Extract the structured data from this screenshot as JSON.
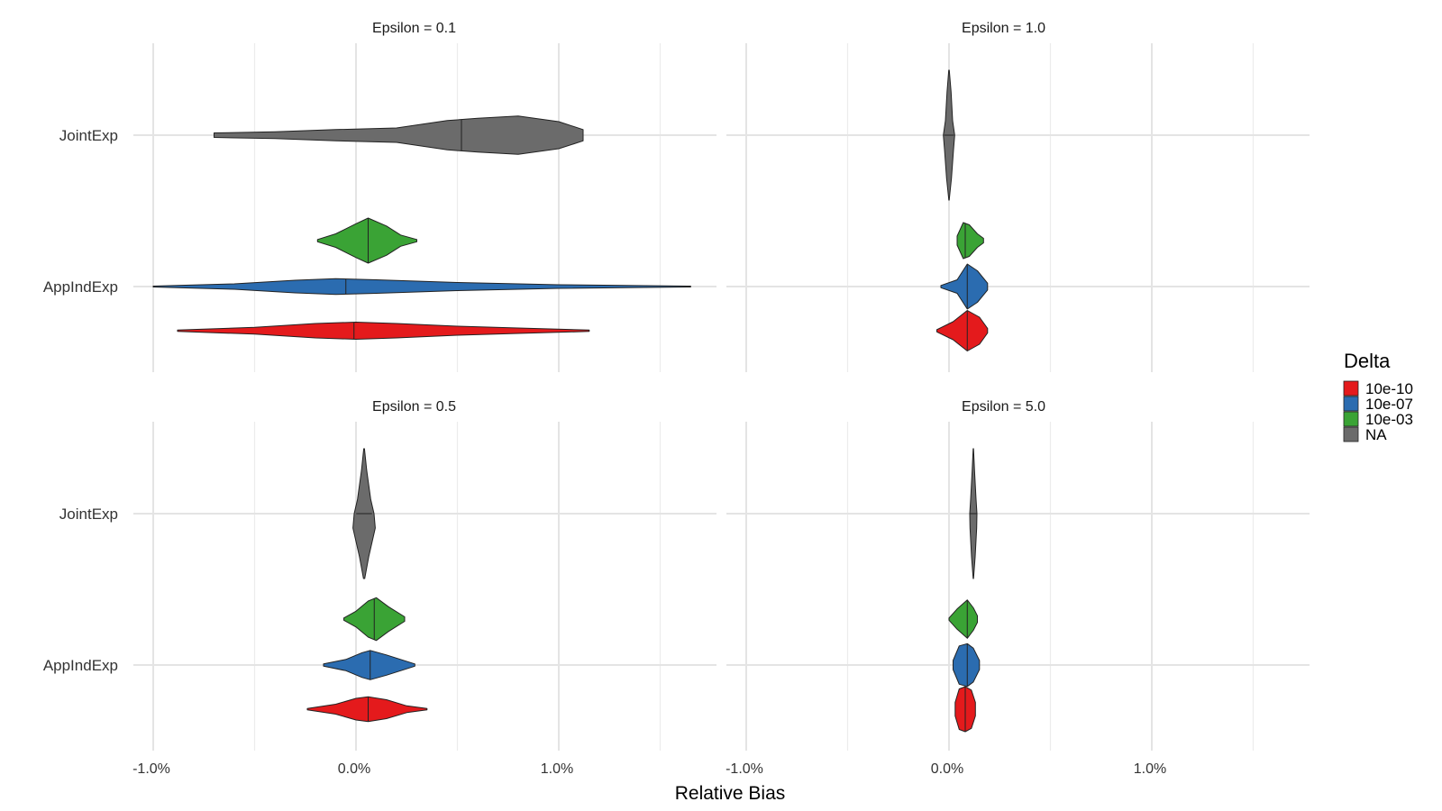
{
  "chart_data": {
    "type": "violin",
    "xlabel": "Relative Bias",
    "ylabel": "",
    "x_ticks": [
      "-1.0%",
      "0.0%",
      "1.0%"
    ],
    "x_tick_values": [
      -1.0,
      0.0,
      1.0
    ],
    "xlim": [
      -1.1,
      1.75
    ],
    "y_categories": [
      "JointExp",
      "AppIndExp"
    ],
    "legend": {
      "title": "Delta",
      "position": "right",
      "entries": [
        {
          "label": "10e-10",
          "color": "#e41a1c"
        },
        {
          "label": "10e-07",
          "color": "#2b6cb0"
        },
        {
          "label": "10e-03",
          "color": "#3aa335"
        },
        {
          "label": "NA",
          "color": "#6b6b6b"
        }
      ]
    },
    "panels": [
      {
        "title": "Epsilon = 0.1",
        "violins": [
          {
            "group": "JointExp",
            "delta": "NA",
            "min": -0.7,
            "max": 1.12,
            "median": 0.52,
            "profile": [
              [
                -0.7,
                0.1
              ],
              [
                -0.4,
                0.15
              ],
              [
                -0.1,
                0.25
              ],
              [
                0.2,
                0.32
              ],
              [
                0.45,
                0.65
              ],
              [
                0.6,
                0.75
              ],
              [
                0.8,
                0.85
              ],
              [
                1.0,
                0.6
              ],
              [
                1.12,
                0.25
              ]
            ]
          },
          {
            "group": "AppIndExp",
            "delta": "10e-03",
            "min": -0.19,
            "max": 0.3,
            "median": 0.06,
            "profile": [
              [
                -0.19,
                0.05
              ],
              [
                -0.1,
                0.3
              ],
              [
                0.0,
                0.75
              ],
              [
                0.06,
                1.0
              ],
              [
                0.15,
                0.65
              ],
              [
                0.22,
                0.25
              ],
              [
                0.3,
                0.05
              ]
            ]
          },
          {
            "group": "AppIndExp",
            "delta": "10e-07",
            "min": -1.0,
            "max": 1.65,
            "median": -0.05,
            "profile": [
              [
                -1.0,
                0.02
              ],
              [
                -0.6,
                0.12
              ],
              [
                -0.3,
                0.28
              ],
              [
                -0.1,
                0.35
              ],
              [
                0.1,
                0.3
              ],
              [
                0.5,
                0.18
              ],
              [
                1.0,
                0.08
              ],
              [
                1.65,
                0.02
              ]
            ]
          },
          {
            "group": "AppIndExp",
            "delta": "10e-10",
            "min": -0.88,
            "max": 1.15,
            "median": -0.01,
            "profile": [
              [
                -0.88,
                0.03
              ],
              [
                -0.5,
                0.15
              ],
              [
                -0.2,
                0.32
              ],
              [
                0.0,
                0.38
              ],
              [
                0.2,
                0.32
              ],
              [
                0.5,
                0.2
              ],
              [
                0.8,
                0.12
              ],
              [
                1.15,
                0.03
              ]
            ]
          }
        ]
      },
      {
        "title": "Epsilon = 1.0",
        "violins": [
          {
            "group": "JointExp",
            "delta": "NA",
            "min": -0.04,
            "max": 0.04,
            "median": 0.0,
            "vertical": true,
            "profile": [
              [
                -0.45,
                0.03
              ],
              [
                -0.3,
                0.25
              ],
              [
                -0.1,
                0.45
              ],
              [
                0.0,
                0.7
              ],
              [
                0.1,
                0.55
              ],
              [
                0.3,
                0.3
              ],
              [
                0.45,
                0.02
              ]
            ]
          },
          {
            "group": "AppIndExp",
            "delta": "10e-03",
            "min": 0.04,
            "max": 0.17,
            "median": 0.08,
            "profile": [
              [
                0.04,
                0.2
              ],
              [
                0.07,
                0.8
              ],
              [
                0.1,
                0.7
              ],
              [
                0.14,
                0.3
              ],
              [
                0.17,
                0.1
              ]
            ]
          },
          {
            "group": "AppIndExp",
            "delta": "10e-07",
            "min": -0.04,
            "max": 0.19,
            "median": 0.09,
            "profile": [
              [
                -0.04,
                0.05
              ],
              [
                0.04,
                0.3
              ],
              [
                0.09,
                1.0
              ],
              [
                0.14,
                0.7
              ],
              [
                0.19,
                0.15
              ]
            ]
          },
          {
            "group": "AppIndExp",
            "delta": "10e-10",
            "min": -0.06,
            "max": 0.19,
            "median": 0.09,
            "profile": [
              [
                -0.06,
                0.05
              ],
              [
                0.02,
                0.4
              ],
              [
                0.09,
                0.9
              ],
              [
                0.15,
                0.6
              ],
              [
                0.19,
                0.1
              ]
            ]
          }
        ]
      },
      {
        "title": "Epsilon = 0.5",
        "violins": [
          {
            "group": "JointExp",
            "delta": "NA",
            "min": -0.02,
            "max": 0.11,
            "median": 0.04,
            "vertical": true,
            "profile": [
              [
                -0.45,
                0.03
              ],
              [
                -0.3,
                0.2
              ],
              [
                -0.1,
                0.5
              ],
              [
                0.0,
                0.75
              ],
              [
                0.1,
                0.85
              ],
              [
                0.3,
                0.35
              ],
              [
                0.45,
                0.05
              ]
            ]
          },
          {
            "group": "AppIndExp",
            "delta": "10e-03",
            "min": -0.06,
            "max": 0.24,
            "median": 0.09,
            "profile": [
              [
                -0.06,
                0.05
              ],
              [
                0.0,
                0.35
              ],
              [
                0.06,
                0.8
              ],
              [
                0.1,
                0.95
              ],
              [
                0.16,
                0.55
              ],
              [
                0.24,
                0.1
              ]
            ]
          },
          {
            "group": "AppIndExp",
            "delta": "10e-07",
            "min": -0.16,
            "max": 0.29,
            "median": 0.07,
            "profile": [
              [
                -0.16,
                0.05
              ],
              [
                -0.05,
                0.25
              ],
              [
                0.03,
                0.55
              ],
              [
                0.07,
                0.65
              ],
              [
                0.15,
                0.45
              ],
              [
                0.29,
                0.05
              ]
            ]
          },
          {
            "group": "AppIndExp",
            "delta": "10e-10",
            "min": -0.24,
            "max": 0.35,
            "median": 0.06,
            "profile": [
              [
                -0.24,
                0.03
              ],
              [
                -0.1,
                0.22
              ],
              [
                0.0,
                0.48
              ],
              [
                0.06,
                0.55
              ],
              [
                0.15,
                0.42
              ],
              [
                0.25,
                0.15
              ],
              [
                0.35,
                0.03
              ]
            ]
          }
        ]
      },
      {
        "title": "Epsilon = 5.0",
        "violins": [
          {
            "group": "JointExp",
            "delta": "NA",
            "min": 0.09,
            "max": 0.15,
            "median": 0.12,
            "vertical": true,
            "profile": [
              [
                -0.45,
                0.03
              ],
              [
                -0.3,
                0.2
              ],
              [
                -0.1,
                0.45
              ],
              [
                0.0,
                0.6
              ],
              [
                0.1,
                0.55
              ],
              [
                0.3,
                0.3
              ],
              [
                0.45,
                0.03
              ]
            ]
          },
          {
            "group": "AppIndExp",
            "delta": "10e-03",
            "min": 0.0,
            "max": 0.14,
            "median": 0.09,
            "profile": [
              [
                0.0,
                0.05
              ],
              [
                0.04,
                0.45
              ],
              [
                0.09,
                0.85
              ],
              [
                0.12,
                0.5
              ],
              [
                0.14,
                0.15
              ]
            ]
          },
          {
            "group": "AppIndExp",
            "delta": "10e-07",
            "min": 0.02,
            "max": 0.15,
            "median": 0.09,
            "profile": [
              [
                0.02,
                0.2
              ],
              [
                0.05,
                0.85
              ],
              [
                0.09,
                0.95
              ],
              [
                0.12,
                0.75
              ],
              [
                0.15,
                0.2
              ]
            ]
          },
          {
            "group": "AppIndExp",
            "delta": "10e-10",
            "min": 0.03,
            "max": 0.13,
            "median": 0.08,
            "profile": [
              [
                0.03,
                0.3
              ],
              [
                0.05,
                0.9
              ],
              [
                0.08,
                1.0
              ],
              [
                0.11,
                0.85
              ],
              [
                0.13,
                0.3
              ]
            ]
          }
        ]
      }
    ]
  }
}
